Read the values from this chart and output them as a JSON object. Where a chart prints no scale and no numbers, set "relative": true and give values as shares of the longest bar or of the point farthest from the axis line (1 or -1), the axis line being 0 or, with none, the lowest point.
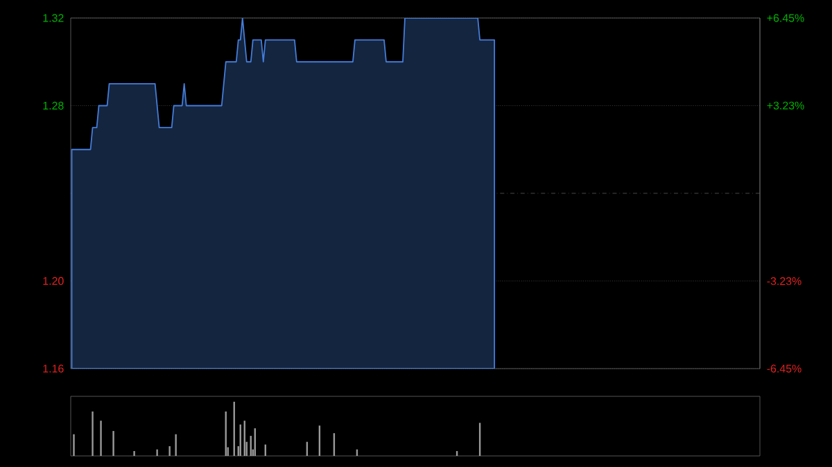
{
  "chart_data": [
    {
      "type": "area",
      "categories": [
        null,
        null,
        null,
        null,
        null,
        null,
        null,
        null,
        null,
        null,
        null,
        null,
        null,
        null,
        null,
        null,
        null,
        null,
        null,
        null,
        null,
        null,
        null,
        null,
        null,
        null,
        null,
        null,
        null,
        null,
        null,
        null,
        null,
        null,
        null,
        null,
        null,
        null,
        null,
        null,
        null,
        null,
        null,
        null,
        null,
        null,
        null,
        null,
        null,
        null,
        null,
        null,
        null,
        null,
        null,
        null,
        null,
        null,
        null,
        null,
        null,
        null,
        null,
        null,
        null,
        null,
        null,
        null,
        null,
        null,
        null,
        null,
        null,
        null,
        null,
        null,
        null,
        null,
        null,
        null,
        null,
        null,
        null,
        null,
        null,
        null,
        null,
        null,
        null,
        null,
        null,
        null,
        null,
        null,
        null,
        null,
        null,
        null,
        null,
        null,
        null,
        null,
        null,
        null,
        null,
        null,
        null,
        null,
        null,
        null,
        null,
        null,
        null,
        null,
        null,
        null,
        null,
        null,
        null,
        null,
        null,
        null,
        null,
        null,
        null,
        null,
        null,
        null,
        null,
        null,
        null,
        null,
        null,
        null,
        null,
        null,
        null,
        null,
        null,
        null,
        null,
        null,
        null,
        null,
        null,
        null,
        null,
        null,
        null,
        null,
        null,
        null,
        null,
        null,
        null,
        null,
        null,
        null,
        null,
        null,
        null,
        null,
        null,
        null,
        null,
        null,
        null,
        null,
        null,
        null,
        null,
        null,
        null,
        null,
        null,
        null,
        null,
        null,
        null,
        null,
        null,
        null,
        null,
        null,
        null,
        null,
        null,
        null,
        null,
        null,
        null,
        null,
        null,
        null,
        null,
        null,
        null,
        null,
        null,
        null,
        null,
        null,
        null,
        null,
        null,
        null,
        null,
        null,
        null,
        null,
        null,
        null,
        null,
        null,
        null,
        null,
        null,
        null,
        null,
        null,
        null,
        null,
        null,
        null,
        null,
        null,
        null,
        null,
        null,
        null,
        null,
        null,
        null,
        null,
        null,
        null,
        null,
        null,
        null,
        null,
        null,
        null,
        null,
        null,
        null,
        null,
        null,
        null,
        null,
        null,
        null,
        null,
        null,
        null,
        null,
        null,
        null,
        null,
        null,
        null,
        null,
        null,
        null,
        null,
        null,
        null,
        null,
        null,
        null,
        null,
        null,
        null,
        null,
        null,
        null,
        null,
        null,
        null,
        null,
        null,
        null,
        null,
        null,
        null,
        null,
        null,
        null,
        null,
        null,
        null,
        null,
        null,
        null,
        null,
        null,
        null,
        null,
        null,
        null,
        null,
        null,
        null,
        null,
        null,
        null,
        null,
        null,
        null,
        null,
        null,
        null,
        null,
        null,
        null,
        null,
        null,
        null,
        null,
        null,
        null,
        null,
        null,
        null,
        null,
        null,
        null,
        null,
        null,
        null,
        null,
        null
      ],
      "series": [
        {
          "color": "#142540",
          "values": [
            1.26,
            1.26,
            1.26,
            1.26,
            1.26,
            1.26,
            1.26,
            1.26,
            1.26,
            1.26,
            1.27,
            1.27,
            1.27,
            1.28,
            1.28,
            1.28,
            1.28,
            1.28,
            1.29,
            1.29,
            1.29,
            1.29,
            1.29,
            1.29,
            1.29,
            1.29,
            1.29,
            1.29,
            1.29,
            1.29,
            1.29,
            1.29,
            1.29,
            1.29,
            1.29,
            1.29,
            1.29,
            1.29,
            1.29,
            1.29,
            1.29,
            1.28,
            1.27,
            1.27,
            1.27,
            1.27,
            1.27,
            1.27,
            1.27,
            1.28,
            1.28,
            1.28,
            1.28,
            1.28,
            1.29,
            1.28,
            1.28,
            1.28,
            1.28,
            1.28,
            1.28,
            1.28,
            1.28,
            1.28,
            1.28,
            1.28,
            1.28,
            1.28,
            1.28,
            1.28,
            1.28,
            1.28,
            1.28,
            1.29,
            1.3,
            1.3,
            1.3,
            1.3,
            1.3,
            1.3,
            1.31,
            1.31,
            1.32,
            1.31,
            1.3,
            1.3,
            1.3,
            1.31,
            1.31,
            1.31,
            1.31,
            1.31,
            1.3,
            1.31,
            1.31,
            1.31,
            1.31,
            1.31,
            1.31,
            1.31,
            1.31,
            1.31,
            1.31,
            1.31,
            1.31,
            1.31,
            1.31,
            1.31,
            1.3,
            1.3,
            1.3,
            1.3,
            1.3,
            1.3,
            1.3,
            1.3,
            1.3,
            1.3,
            1.3,
            1.3,
            1.3,
            1.3,
            1.3,
            1.3,
            1.3,
            1.3,
            1.3,
            1.3,
            1.3,
            1.3,
            1.3,
            1.3,
            1.3,
            1.3,
            1.3,
            1.3,
            1.31,
            1.31,
            1.31,
            1.31,
            1.31,
            1.31,
            1.31,
            1.31,
            1.31,
            1.31,
            1.31,
            1.31,
            1.31,
            1.31,
            1.31,
            1.3,
            1.3,
            1.3,
            1.3,
            1.3,
            1.3,
            1.3,
            1.3,
            1.3,
            1.32,
            1.32,
            1.32,
            1.32,
            1.32,
            1.32,
            1.32,
            1.32,
            1.32,
            1.32,
            1.32,
            1.32,
            1.32,
            1.32,
            1.32,
            1.32,
            1.32,
            1.32,
            1.32,
            1.32,
            1.32,
            1.32,
            1.32,
            1.32,
            1.32,
            1.32,
            1.32,
            1.32,
            1.32,
            1.32,
            1.32,
            1.32,
            1.32,
            1.32,
            1.32,
            1.32,
            1.31,
            1.31,
            1.31,
            1.31,
            1.31,
            1.31,
            1.31,
            1.31,
            null,
            null,
            null,
            null,
            null,
            null,
            null,
            null,
            null,
            null,
            null,
            null,
            null,
            null,
            null,
            null,
            null,
            null,
            null,
            null,
            null,
            null,
            null,
            null,
            null,
            null,
            null,
            null,
            null,
            null,
            null,
            null,
            null,
            null,
            null,
            null,
            null,
            null,
            null,
            null,
            null,
            null,
            null,
            null,
            null,
            null,
            null,
            null,
            null,
            null,
            null,
            null,
            null,
            null,
            null,
            null,
            null,
            null,
            null,
            null,
            null,
            null,
            null,
            null,
            null,
            null,
            null,
            null,
            null,
            null,
            null,
            null,
            null,
            null,
            null,
            null,
            null,
            null,
            null,
            null,
            null,
            null,
            null,
            null,
            null,
            null,
            null,
            null,
            null,
            null,
            null,
            null,
            null,
            null,
            null,
            null,
            null,
            null,
            null,
            null,
            null,
            null,
            null,
            null,
            null,
            null,
            null,
            null,
            null,
            null,
            null,
            null,
            null,
            null,
            null,
            null,
            null,
            null,
            null,
            null,
            null,
            null,
            null,
            null,
            null,
            null,
            null
          ]
        }
      ],
      "ylim": [
        1.16,
        1.32
      ],
      "yticks": [
        {
          "value": 1.16,
          "label": "1.16"
        },
        {
          "value": 1.2,
          "label": "1.20"
        },
        {
          "value": 1.28,
          "label": "1.28"
        },
        {
          "value": 1.32,
          "label": "1.32"
        }
      ],
      "y2lim": [
        -6.45,
        6.45
      ],
      "y2ticks": [
        {
          "value": -6.45,
          "label": "-6.45%"
        },
        {
          "value": -3.23,
          "label": "-3.23%"
        },
        {
          "value": 3.23,
          "label": "+3.23%"
        },
        {
          "value": 6.45,
          "label": "+6.45%"
        }
      ],
      "ref_lines": [
        {
          "axis": "y",
          "value": 1.24,
          "line_style": "dashed"
        }
      ],
      "grid": "y",
      "tick_labels": "y"
    },
    {
      "type": "bar",
      "relative": true,
      "categories": [
        null,
        null,
        null,
        null,
        null,
        null,
        null,
        null,
        null,
        null,
        null,
        null,
        null,
        null,
        null,
        null,
        null,
        null,
        null,
        null,
        null,
        null,
        null,
        null,
        null,
        null,
        null,
        null,
        null,
        null,
        null,
        null,
        null,
        null,
        null,
        null,
        null,
        null,
        null,
        null,
        null,
        null,
        null,
        null,
        null,
        null,
        null,
        null,
        null,
        null,
        null,
        null,
        null,
        null,
        null,
        null,
        null,
        null,
        null,
        null,
        null,
        null,
        null,
        null,
        null,
        null,
        null,
        null,
        null,
        null,
        null,
        null,
        null,
        null,
        null,
        null,
        null,
        null,
        null,
        null,
        null,
        null,
        null,
        null,
        null,
        null,
        null,
        null,
        null,
        null,
        null,
        null,
        null,
        null,
        null,
        null,
        null,
        null,
        null,
        null,
        null,
        null,
        null,
        null,
        null,
        null,
        null,
        null,
        null,
        null,
        null,
        null,
        null,
        null,
        null,
        null,
        null,
        null,
        null,
        null,
        null,
        null,
        null,
        null,
        null,
        null,
        null,
        null,
        null,
        null,
        null,
        null,
        null,
        null,
        null,
        null,
        null,
        null,
        null,
        null,
        null,
        null,
        null,
        null,
        null,
        null,
        null,
        null,
        null,
        null,
        null,
        null,
        null,
        null,
        null,
        null,
        null,
        null,
        null,
        null,
        null,
        null,
        null,
        null,
        null,
        null,
        null,
        null,
        null,
        null,
        null,
        null,
        null,
        null,
        null,
        null,
        null,
        null,
        null,
        null,
        null,
        null,
        null,
        null,
        null,
        null,
        null,
        null,
        null,
        null,
        null,
        null,
        null,
        null,
        null,
        null,
        null,
        null,
        null,
        null,
        null,
        null,
        null,
        null,
        null,
        null,
        null,
        null,
        null,
        null,
        null,
        null,
        null,
        null,
        null,
        null,
        null,
        null,
        null,
        null,
        null,
        null,
        null,
        null,
        null,
        null,
        null,
        null,
        null,
        null,
        null,
        null,
        null,
        null,
        null,
        null,
        null,
        null,
        null,
        null,
        null,
        null,
        null,
        null,
        null,
        null,
        null,
        null,
        null,
        null,
        null,
        null,
        null,
        null,
        null,
        null,
        null,
        null,
        null,
        null,
        null,
        null,
        null,
        null,
        null,
        null,
        null,
        null,
        null,
        null,
        null,
        null,
        null,
        null,
        null,
        null,
        null,
        null,
        null,
        null,
        null,
        null,
        null,
        null,
        null,
        null,
        null,
        null,
        null,
        null,
        null,
        null,
        null,
        null,
        null,
        null,
        null,
        null,
        null,
        null,
        null,
        null,
        null,
        null,
        null,
        null,
        null,
        null,
        null,
        null,
        null,
        null,
        null,
        null,
        null,
        null,
        null,
        null,
        null,
        null,
        null,
        null,
        null,
        null,
        null,
        null,
        null,
        null,
        null,
        null,
        null
      ],
      "values": [
        0,
        0.4,
        0,
        0,
        0,
        0,
        0,
        0,
        0,
        0,
        0.82,
        0,
        0,
        0,
        0.65,
        0,
        0,
        0,
        0,
        0,
        0.46,
        0,
        0,
        0,
        0,
        0,
        0,
        0,
        0,
        0,
        0.09,
        0,
        0,
        0,
        0,
        0,
        0,
        0,
        0,
        0,
        0,
        0.12,
        0,
        0,
        0,
        0,
        0,
        0.18,
        0,
        0,
        0.4,
        0,
        0,
        0,
        0,
        0,
        0,
        0,
        0,
        0,
        0,
        0,
        0,
        0,
        0,
        0,
        0,
        0,
        0,
        0,
        0,
        0,
        0,
        0,
        0.82,
        0.16,
        0,
        0,
        1,
        0,
        0.18,
        0.58,
        0,
        0.65,
        0.26,
        0,
        0.37,
        0.12,
        0.51,
        0,
        0,
        0,
        0,
        0.21,
        0,
        0,
        0,
        0,
        0,
        0,
        0,
        0,
        0,
        0,
        0,
        0,
        0,
        0,
        0,
        0,
        0,
        0,
        0,
        0.26,
        0,
        0,
        0,
        0,
        0,
        0.56,
        0,
        0,
        0,
        0,
        0,
        0,
        0.42,
        0,
        0,
        0,
        0,
        0,
        0,
        0,
        0,
        0,
        0,
        0.12,
        0,
        0,
        0,
        0,
        0,
        0,
        0,
        0,
        0,
        0,
        0,
        0,
        0,
        0,
        0,
        0,
        0,
        0,
        0,
        0,
        0,
        0,
        0,
        0,
        0,
        0,
        0,
        0,
        0,
        0,
        0,
        0,
        0,
        0,
        0,
        0,
        0,
        0,
        0,
        0,
        0,
        0,
        0,
        0,
        0,
        0,
        0,
        0.09,
        0,
        0,
        0,
        0,
        0,
        0,
        0,
        0,
        0,
        0,
        0.61,
        0,
        0,
        0,
        0,
        0,
        0,
        0,
        null,
        null,
        null,
        null,
        null,
        null,
        null,
        null,
        null,
        null,
        null,
        null,
        null,
        null,
        null,
        null,
        null,
        null,
        null,
        null,
        null,
        null,
        null,
        null,
        null,
        null,
        null,
        null,
        null,
        null,
        null,
        null,
        null,
        null,
        null,
        null,
        null,
        null,
        null,
        null,
        null,
        null,
        null,
        null,
        null,
        null,
        null,
        null,
        null,
        null,
        null,
        null,
        null,
        null,
        null,
        null,
        null,
        null,
        null,
        null,
        null,
        null,
        null,
        null,
        null,
        null,
        null,
        null,
        null,
        null,
        null,
        null,
        null,
        null,
        null,
        null,
        null,
        null,
        null,
        null,
        null,
        null,
        null,
        null,
        null,
        null,
        null,
        null,
        null,
        null,
        null,
        null,
        null,
        null,
        null,
        null,
        null,
        null,
        null,
        null,
        null,
        null,
        null,
        null,
        null,
        null,
        null,
        null,
        null,
        null,
        null,
        null,
        null,
        null,
        null,
        null,
        null,
        null,
        null,
        null,
        null,
        null,
        null,
        null,
        null,
        null,
        null
      ],
      "color": "#9a9a9a",
      "tick_labels": false
    }
  ]
}
